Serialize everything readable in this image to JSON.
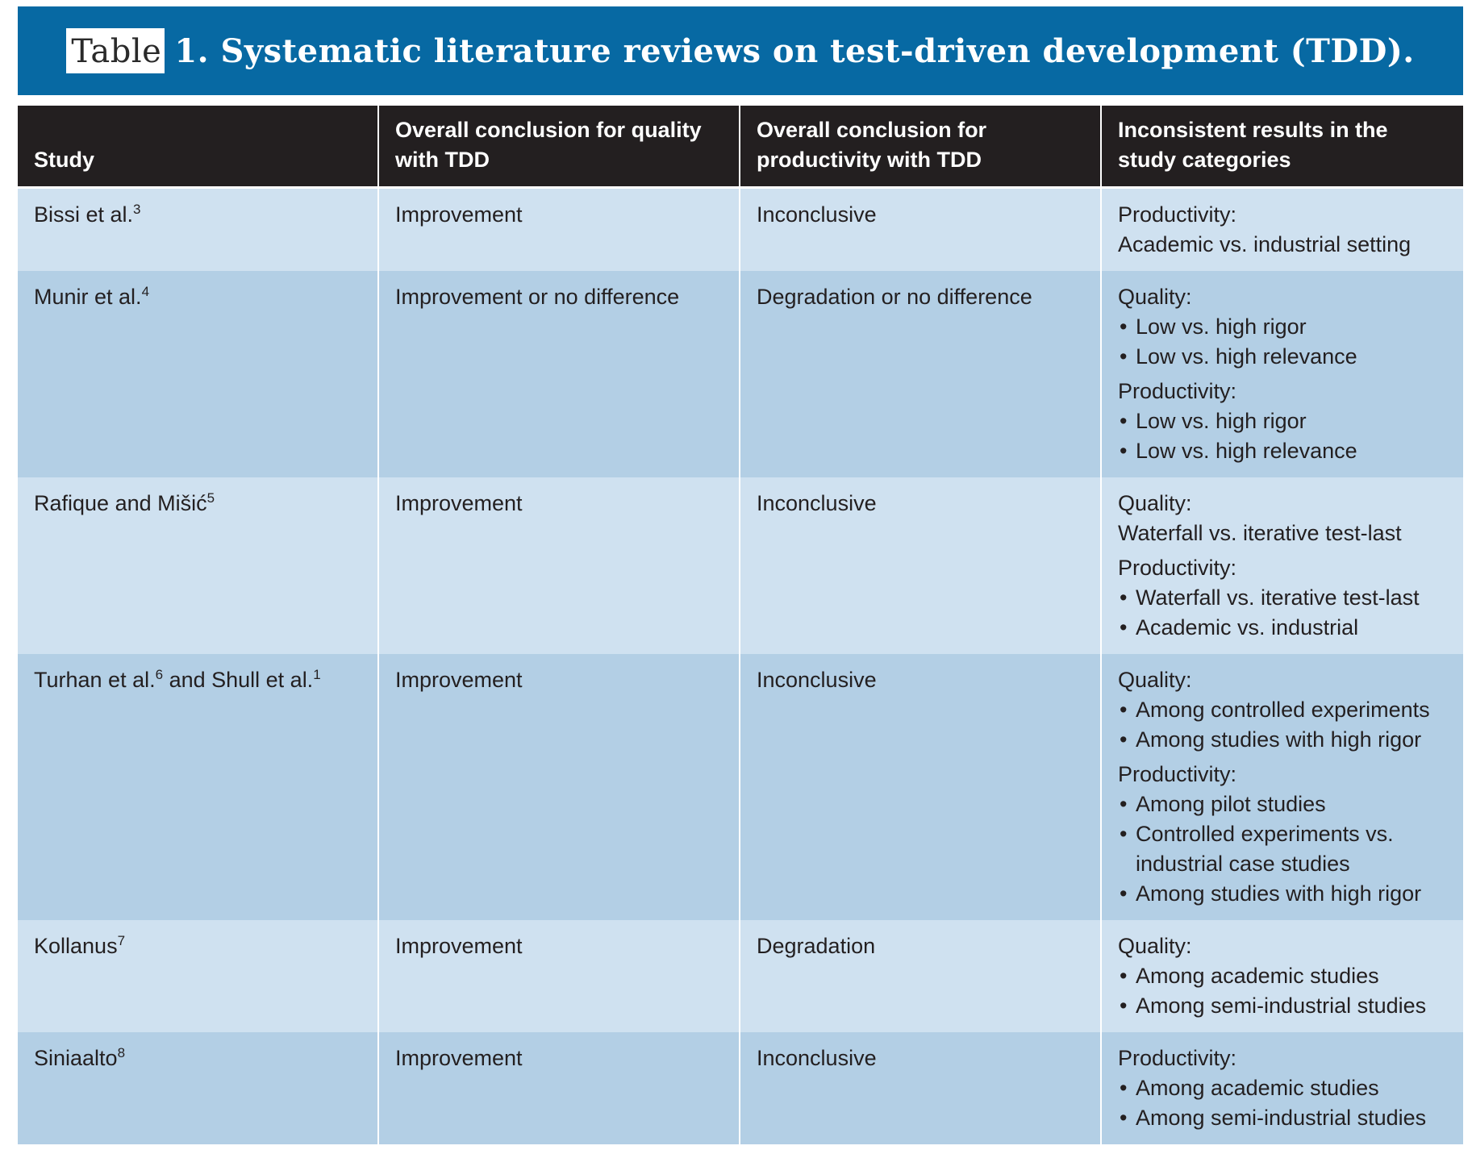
{
  "title": {
    "label": "Table",
    "text": "1. Systematic literature reviews on test-driven development (TDD)."
  },
  "table": {
    "headers": [
      "Study",
      "Overall conclusion for quality with TDD",
      "Overall conclusion for productivity with TDD",
      "Inconsistent results in the study categories"
    ],
    "rows": [
      {
        "study": [
          {
            "name": "Bissi et al.",
            "ref": "3"
          }
        ],
        "quality": "Improvement",
        "productivity": "Inconclusive",
        "inconsistent": [
          {
            "heading": "Productivity:",
            "plain": "Academic vs. industrial setting"
          }
        ]
      },
      {
        "study": [
          {
            "name": "Munir et al.",
            "ref": "4"
          }
        ],
        "quality": "Improvement or no difference",
        "productivity": "Degradation or no difference",
        "inconsistent": [
          {
            "heading": "Quality:",
            "items": [
              "Low vs. high rigor",
              "Low vs. high relevance"
            ]
          },
          {
            "heading": "Productivity:",
            "items": [
              "Low vs. high rigor",
              "Low vs. high relevance"
            ]
          }
        ]
      },
      {
        "study": [
          {
            "name": "Rafique and Mišić",
            "ref": "5"
          }
        ],
        "quality": "Improvement",
        "productivity": "Inconclusive",
        "inconsistent": [
          {
            "heading": "Quality:",
            "plain": "Waterfall vs. iterative test-last"
          },
          {
            "heading": "Productivity:",
            "items": [
              "Waterfall vs. iterative test-last",
              "Academic vs. industrial"
            ]
          }
        ]
      },
      {
        "study": [
          {
            "name": "Turhan et al.",
            "ref": "6"
          },
          {
            "name": " and Shull et al.",
            "ref": "1"
          }
        ],
        "quality": "Improvement",
        "productivity": "Inconclusive",
        "inconsistent": [
          {
            "heading": "Quality:",
            "items": [
              "Among controlled experiments",
              "Among studies with high rigor"
            ]
          },
          {
            "heading": "Productivity:",
            "items": [
              "Among pilot studies",
              "Controlled experiments vs. industrial case studies",
              "Among studies with high rigor"
            ]
          }
        ]
      },
      {
        "study": [
          {
            "name": "Kollanus",
            "ref": "7"
          }
        ],
        "quality": "Improvement",
        "productivity": "Degradation",
        "inconsistent": [
          {
            "heading": "Quality:",
            "items": [
              "Among academic studies",
              "Among semi-industrial studies"
            ]
          }
        ]
      },
      {
        "study": [
          {
            "name": "Siniaalto",
            "ref": "8"
          }
        ],
        "quality": "Improvement",
        "productivity": "Inconclusive",
        "inconsistent": [
          {
            "heading": "Productivity:",
            "items": [
              "Among academic studies",
              "Among semi-industrial studies"
            ]
          }
        ]
      }
    ]
  },
  "colors": {
    "title_bar": "#0769a3",
    "header_bg": "#231f20",
    "row_light": "#cfe1f0",
    "row_dark": "#b3cfe5"
  }
}
